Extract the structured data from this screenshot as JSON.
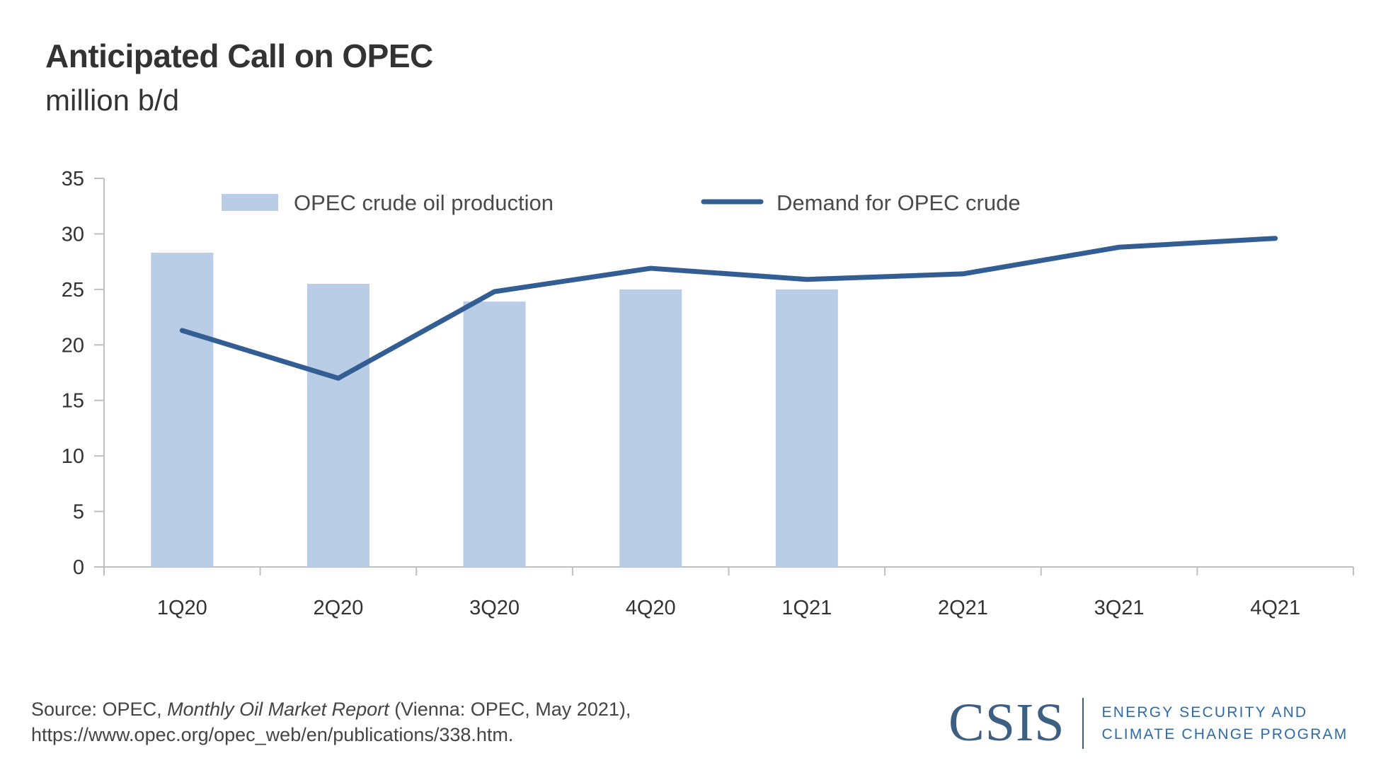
{
  "header": {
    "title": "Anticipated Call on OPEC",
    "subtitle": "million b/d"
  },
  "colors": {
    "bar": "#bacde7",
    "line": "#335e93",
    "axis": "#bfbfbf",
    "text": "#333333",
    "logo": "#3d5f82"
  },
  "chart_data": {
    "type": "bar",
    "title": "Anticipated Call on OPEC",
    "subtitle": "million b/d",
    "xlabel": "",
    "ylabel": "million b/d",
    "ylim": [
      0,
      35
    ],
    "yticks": [
      0,
      5,
      10,
      15,
      20,
      25,
      30,
      35
    ],
    "grid": false,
    "legend_position": "top",
    "categories": [
      "1Q20",
      "2Q20",
      "3Q20",
      "4Q20",
      "1Q21",
      "2Q21",
      "3Q21",
      "4Q21"
    ],
    "series": [
      {
        "name": "OPEC crude oil production",
        "type": "bar",
        "values": [
          28.3,
          25.5,
          23.9,
          25.0,
          25.0,
          null,
          null,
          null
        ]
      },
      {
        "name": "Demand for OPEC crude",
        "type": "line",
        "values": [
          21.3,
          17.0,
          24.8,
          26.9,
          25.9,
          26.4,
          28.8,
          29.6
        ]
      }
    ]
  },
  "footer": {
    "source_prefix": "Source: OPEC, ",
    "source_italic": "Monthly Oil Market Report",
    "source_suffix": " (Vienna: OPEC, May 2021),",
    "source_url": "https://www.opec.org/opec_web/en/publications/338.htm.",
    "logo_mark": "CSIS",
    "logo_line1": "ENERGY SECURITY AND",
    "logo_line2": "CLIMATE CHANGE PROGRAM"
  }
}
